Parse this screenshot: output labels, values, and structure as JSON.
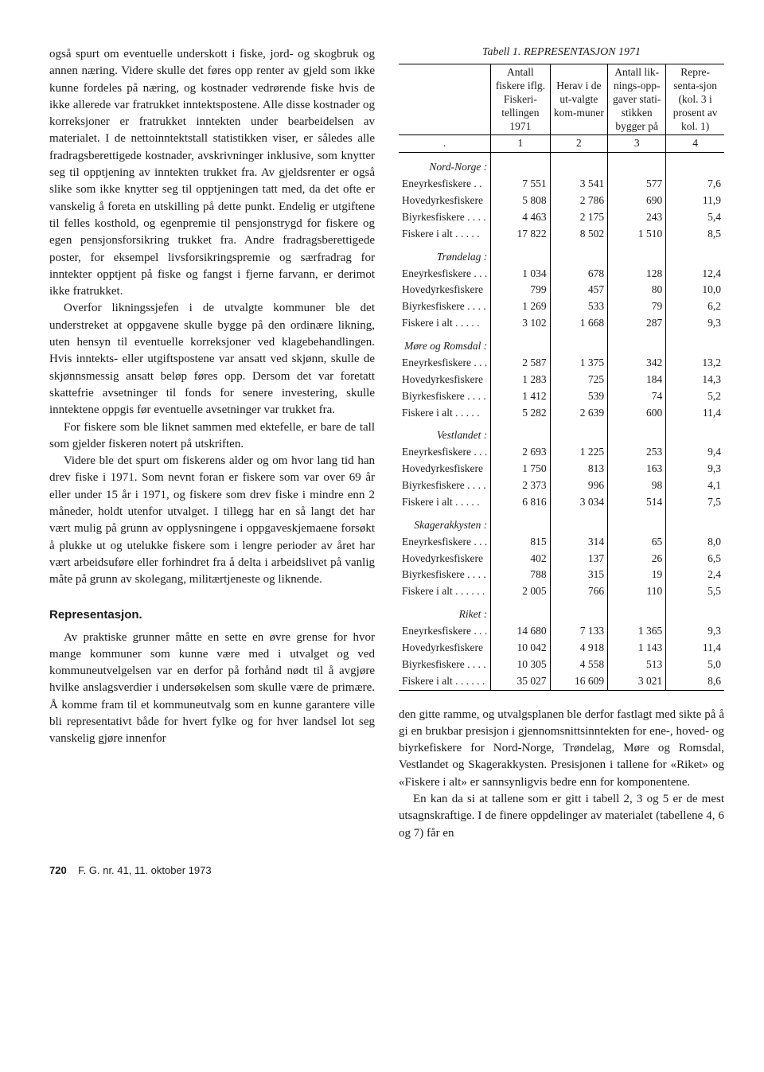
{
  "leftCol": {
    "p1": "også spurt om eventuelle underskott i fiske, jord- og skogbruk og annen næring. Videre skulle det føres opp renter av gjeld som ikke kunne fordeles på næring, og kostnader vedrørende fiske hvis de ikke allerede var fratrukket inntektspostene. Alle disse kostnader og korreksjoner er fratrukket inntekten under bearbeidelsen av materialet. I de nettoinntektstall statistikken viser, er således alle fradragsberettigede kostnader, avskrivninger inklusive, som knytter seg til opptjening av inntekten trukket fra. Av gjeldsrenter er også slike som ikke knytter seg til opptjeningen tatt med, da det ofte er vanskelig å foreta en utskilling på dette punkt. Endelig er utgiftene til felles kosthold, og egenpremie til pensjonstrygd for fiskere og egen pensjonsforsikring trukket fra. Andre fradragsberettigede poster, for eksempel livsforsikringspremie og særfradrag for inntekter opptjent på fiske og fangst i fjerne farvann, er derimot ikke fratrukket.",
    "p2": "Overfor likningssjefen i de utvalgte kommuner ble det understreket at oppgavene skulle bygge på den ordinære likning, uten hensyn til eventuelle korreksjoner ved klagebehandlingen. Hvis inntekts- eller utgiftspostene var ansatt ved skjønn, skulle de skjønnsmessig ansatt beløp føres opp. Dersom det var foretatt skattefrie avsetninger til fonds for senere investering, skulle inntektene oppgis før eventuelle avsetninger var trukket fra.",
    "p3": "For fiskere som ble liknet sammen med ektefelle, er bare de tall som gjelder fiskeren notert på utskriften.",
    "p4": "Videre ble det spurt om fiskerens alder og om hvor lang tid han drev fiske i 1971. Som nevnt foran er fiskere som var over 69 år eller under 15 år i 1971, og fiskere som drev fiske i mindre enn 2 måneder, holdt utenfor utvalget. I tillegg har en så langt det har vært mulig på grunn av opplysningene i oppgaveskjemaene forsøkt å plukke ut og utelukke fiskere som i lengre perioder av året har vært arbeidsuføre eller forhindret fra å delta i arbeidslivet på vanlig måte på grunn av skolegang, militærtjeneste og liknende.",
    "secHead": "Representasjon.",
    "p5": "Av praktiske grunner måtte en sette en øvre grense for hvor mange kommuner som kunne være med i utvalget og ved kommuneutvelgelsen var en derfor på forhånd nødt til å avgjøre hvilke anslagsverdier i undersøkelsen som skulle være de primære. Å komme fram til et kommuneutvalg som en kunne garantere ville bli representativt både for hvert fylke og for hver landsel lot seg vanskelig gjøre innenfor"
  },
  "table": {
    "caption_prefix": "Tabell 1.",
    "caption_rest": " REPRESENTASJON 1971",
    "head": {
      "c1": "Antall fiskere iflg. Fiskeri-tellingen 1971",
      "c2": "Herav i de ut-valgte kom-muner",
      "c3": "Antall lik-nings-opp-gaver stati-stikken bygger på",
      "c4": "Repre-senta-sjon (kol. 3 i prosent av kol. 1)"
    },
    "colnums": [
      "1",
      "2",
      "3",
      "4"
    ],
    "regions": [
      {
        "name": "Nord-Norge :",
        "rows": [
          {
            "label": "Eneyrkesfiskere  . .",
            "c1": "7 551",
            "c2": "3 541",
            "c3": "577",
            "c4": "7,6"
          },
          {
            "label": "Hovedyrkesfiskere",
            "c1": "5 808",
            "c2": "2 786",
            "c3": "690",
            "c4": "11,9"
          },
          {
            "label": "Biyrkesfiskere . . . .",
            "c1": "4 463",
            "c2": "2 175",
            "c3": "243",
            "c4": "5,4"
          },
          {
            "label": "Fiskere i alt  . . . . .",
            "c1": "17 822",
            "c2": "8 502",
            "c3": "1 510",
            "c4": "8,5"
          }
        ]
      },
      {
        "name": "Trøndelag :",
        "rows": [
          {
            "label": "Eneyrkesfiskere . . .",
            "c1": "1 034",
            "c2": "678",
            "c3": "128",
            "c4": "12,4"
          },
          {
            "label": "Hovedyrkesfiskere",
            "c1": "799",
            "c2": "457",
            "c3": "80",
            "c4": "10,0"
          },
          {
            "label": "Biyrkesfiskere . . . .",
            "c1": "1 269",
            "c2": "533",
            "c3": "79",
            "c4": "6,2"
          },
          {
            "label": "Fiskere i alt  . . . . .",
            "c1": "3 102",
            "c2": "1 668",
            "c3": "287",
            "c4": "9,3"
          }
        ]
      },
      {
        "name": "Møre og Romsdal :",
        "rows": [
          {
            "label": "Eneyrkesfiskere . . .",
            "c1": "2 587",
            "c2": "1 375",
            "c3": "342",
            "c4": "13,2"
          },
          {
            "label": "Hovedyrkesfiskere",
            "c1": "1 283",
            "c2": "725",
            "c3": "184",
            "c4": "14,3"
          },
          {
            "label": "Biyrkesfiskere . . . .",
            "c1": "1 412",
            "c2": "539",
            "c3": "74",
            "c4": "5,2"
          },
          {
            "label": "Fiskere i alt  . . . . .",
            "c1": "5 282",
            "c2": "2 639",
            "c3": "600",
            "c4": "11,4"
          }
        ]
      },
      {
        "name": "Vestlandet :",
        "rows": [
          {
            "label": "Eneyrkesfiskere . . .",
            "c1": "2 693",
            "c2": "1 225",
            "c3": "253",
            "c4": "9,4"
          },
          {
            "label": "Hovedyrkesfiskere",
            "c1": "1 750",
            "c2": "813",
            "c3": "163",
            "c4": "9,3"
          },
          {
            "label": "Biyrkesfiskere . . . .",
            "c1": "2 373",
            "c2": "996",
            "c3": "98",
            "c4": "4,1"
          },
          {
            "label": "Fiskere i alt  . . . . .",
            "c1": "6 816",
            "c2": "3 034",
            "c3": "514",
            "c4": "7,5"
          }
        ]
      },
      {
        "name": "Skagerakkysten :",
        "rows": [
          {
            "label": "Eneyrkesfiskere . . .",
            "c1": "815",
            "c2": "314",
            "c3": "65",
            "c4": "8,0"
          },
          {
            "label": "Hovedyrkesfiskere",
            "c1": "402",
            "c2": "137",
            "c3": "26",
            "c4": "6,5"
          },
          {
            "label": "Biyrkesfiskere . . . .",
            "c1": "788",
            "c2": "315",
            "c3": "19",
            "c4": "2,4"
          },
          {
            "label": "Fiskere i alt . . . . . .",
            "c1": "2 005",
            "c2": "766",
            "c3": "110",
            "c4": "5,5"
          }
        ]
      },
      {
        "name": "Riket :",
        "rows": [
          {
            "label": "Eneyrkesfiskere . . .",
            "c1": "14 680",
            "c2": "7 133",
            "c3": "1 365",
            "c4": "9,3"
          },
          {
            "label": "Hovedyrkesfiskere",
            "c1": "10 042",
            "c2": "4 918",
            "c3": "1 143",
            "c4": "11,4"
          },
          {
            "label": "Biyrkesfiskere . . . .",
            "c1": "10 305",
            "c2": "4 558",
            "c3": "513",
            "c4": "5,0"
          },
          {
            "label": "Fiskere i alt . . . . . .",
            "c1": "35 027",
            "c2": "16 609",
            "c3": "3 021",
            "c4": "8,6"
          }
        ]
      }
    ]
  },
  "lower": {
    "right1": "den gitte ramme, og utvalgsplanen ble derfor fastlagt med sikte på å gi en brukbar presisjon i gjennomsnittsinntekten for ene-, hoved- og biyrkefiskere for Nord-Norge, Trøndelag, Møre og Romsdal, Vestlandet og Skagerakkysten. Presisjonen i tallene for «Riket» og «Fiskere i alt» er sannsynligvis bedre enn for komponentene.",
    "right2": "En kan da si at tallene som er gitt i tabell 2, 3 og 5 er de mest utsagnskraftige. I de finere oppdelinger av materialet (tabellene 4, 6 og 7) får en"
  },
  "footer": {
    "pageno": "720",
    "rest": "F. G. nr. 41, 11. oktober 1973"
  }
}
